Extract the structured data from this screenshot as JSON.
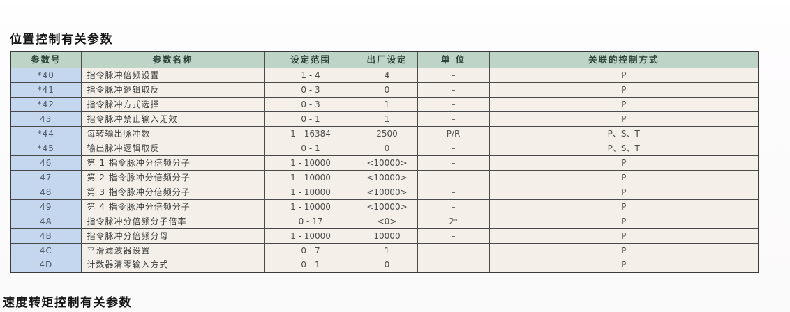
{
  "page": {
    "title_top": "位置控制有关参数",
    "title_bottom": "速度转矩控制有关参数"
  },
  "colors": {
    "header_bg": "#bed4c6",
    "param_col_bg": "#c4d7ee",
    "cell_bg": "#f4efe9",
    "border": "#4a4a4a"
  },
  "table": {
    "headers": [
      "参数号",
      "参数名称",
      "设定范围",
      "出厂设定",
      "单 位",
      "关联的控制方式"
    ],
    "rows": [
      {
        "no": "*40",
        "name": "指令脉冲倍频设置",
        "range": "1 - 4",
        "default": "4",
        "unit": "–",
        "mode": "P"
      },
      {
        "no": "*41",
        "name": "指令脉冲逻辑取反",
        "range": "0 - 3",
        "default": "0",
        "unit": "–",
        "mode": "P"
      },
      {
        "no": "*42",
        "name": "指令脉冲方式选择",
        "range": "0 - 3",
        "default": "1",
        "unit": "–",
        "mode": "P"
      },
      {
        "no": "43",
        "name": "指令脉冲禁止输入无效",
        "range": "0 - 1",
        "default": "1",
        "unit": "–",
        "mode": "P"
      },
      {
        "no": "*44",
        "name": "每转输出脉冲数",
        "range": "1 - 16384",
        "default": "2500",
        "unit": "P/R",
        "mode": "P、S、T"
      },
      {
        "no": "*45",
        "name": "输出脉冲逻辑取反",
        "range": "0 - 1",
        "default": "0",
        "unit": "–",
        "mode": "P、S、T"
      },
      {
        "no": "46",
        "name": "第 1 指令脉冲分倍频分子",
        "range": "1 - 10000",
        "default": "<10000>",
        "unit": "–",
        "mode": "P"
      },
      {
        "no": "47",
        "name": "第 2 指令脉冲分倍频分子",
        "range": "1 - 10000",
        "default": "<10000>",
        "unit": "–",
        "mode": "P"
      },
      {
        "no": "48",
        "name": "第 3 指令脉冲分倍频分子",
        "range": "1 - 10000",
        "default": "<10000>",
        "unit": "–",
        "mode": "P"
      },
      {
        "no": "49",
        "name": "第 4 指令脉冲分倍频分子",
        "range": "1 - 10000",
        "default": "<10000>",
        "unit": "–",
        "mode": "P"
      },
      {
        "no": "4A",
        "name": "指令脉冲分倍频分子倍率",
        "range": "0 - 17",
        "default": "<0>",
        "unit": "2ⁿ",
        "mode": "P"
      },
      {
        "no": "4B",
        "name": "指令脉冲分倍频分母",
        "range": "1 - 10000",
        "default": "10000",
        "unit": "–",
        "mode": "P"
      },
      {
        "no": "4C",
        "name": "平滑滤波器设置",
        "range": "0 - 7",
        "default": "1",
        "unit": "–",
        "mode": "P"
      },
      {
        "no": "4D",
        "name": "计数器清零输入方式",
        "range": "0 - 1",
        "default": "0",
        "unit": "–",
        "mode": "P"
      }
    ]
  }
}
